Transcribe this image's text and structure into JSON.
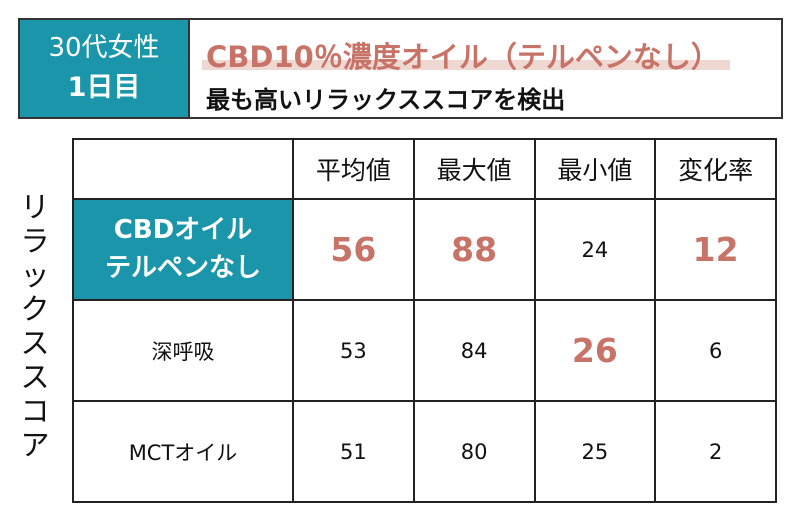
{
  "header": {
    "subject_line1": "30代女性",
    "subject_line2": "1日目",
    "title": "CBD10％濃度オイル（テルペンなし）",
    "subtitle": "最も高いリラックススコアを検出"
  },
  "side_label": [
    "リ",
    "ラ",
    "ッ",
    "ク",
    "ス",
    "ス",
    "コ",
    "ア"
  ],
  "table": {
    "columns": [
      "平均値",
      "最大値",
      "最小値",
      "変化率"
    ],
    "rows": [
      {
        "name_line1": "CBDオイル",
        "name_line2": "テルペンなし",
        "values": [
          "56",
          "88",
          "24",
          "12"
        ]
      },
      {
        "name": "深呼吸",
        "values": [
          "53",
          "84",
          "26",
          "6"
        ]
      },
      {
        "name": "MCTオイル",
        "values": [
          "51",
          "80",
          "25",
          "2"
        ]
      }
    ]
  },
  "colors": {
    "teal": "#1b95aa",
    "accent": "#c87368",
    "highlight_bar": "#efd7d2"
  }
}
